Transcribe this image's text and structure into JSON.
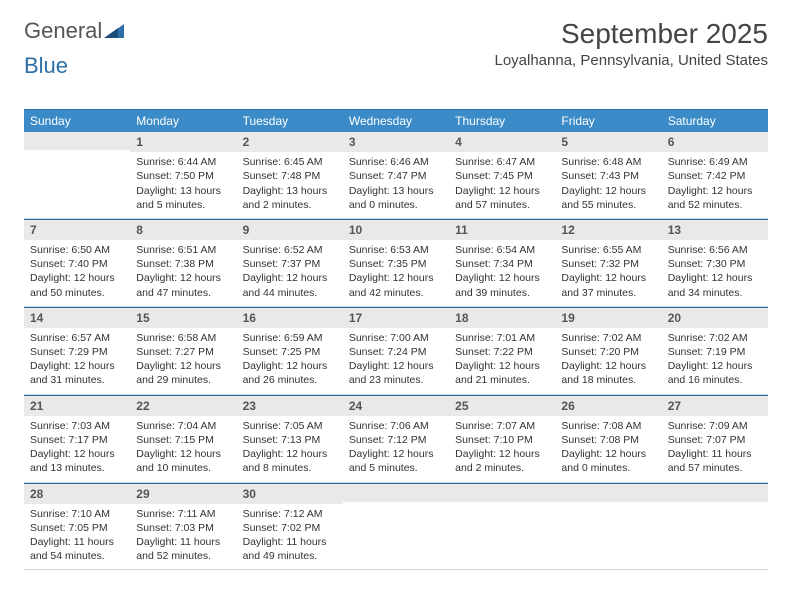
{
  "brand": {
    "part1": "General",
    "part2": "Blue"
  },
  "title": "September 2025",
  "location": "Loyalhanna, Pennsylvania, United States",
  "colors": {
    "header_bg": "#3b8bc9",
    "header_text": "#ffffff",
    "daynum_bg": "#e9e9e9",
    "border": "#2e6ca4",
    "text": "#333333"
  },
  "day_headers": [
    "Sunday",
    "Monday",
    "Tuesday",
    "Wednesday",
    "Thursday",
    "Friday",
    "Saturday"
  ],
  "weeks": [
    [
      null,
      {
        "num": "1",
        "sunrise": "Sunrise: 6:44 AM",
        "sunset": "Sunset: 7:50 PM",
        "daylight": "Daylight: 13 hours and 5 minutes."
      },
      {
        "num": "2",
        "sunrise": "Sunrise: 6:45 AM",
        "sunset": "Sunset: 7:48 PM",
        "daylight": "Daylight: 13 hours and 2 minutes."
      },
      {
        "num": "3",
        "sunrise": "Sunrise: 6:46 AM",
        "sunset": "Sunset: 7:47 PM",
        "daylight": "Daylight: 13 hours and 0 minutes."
      },
      {
        "num": "4",
        "sunrise": "Sunrise: 6:47 AM",
        "sunset": "Sunset: 7:45 PM",
        "daylight": "Daylight: 12 hours and 57 minutes."
      },
      {
        "num": "5",
        "sunrise": "Sunrise: 6:48 AM",
        "sunset": "Sunset: 7:43 PM",
        "daylight": "Daylight: 12 hours and 55 minutes."
      },
      {
        "num": "6",
        "sunrise": "Sunrise: 6:49 AM",
        "sunset": "Sunset: 7:42 PM",
        "daylight": "Daylight: 12 hours and 52 minutes."
      }
    ],
    [
      {
        "num": "7",
        "sunrise": "Sunrise: 6:50 AM",
        "sunset": "Sunset: 7:40 PM",
        "daylight": "Daylight: 12 hours and 50 minutes."
      },
      {
        "num": "8",
        "sunrise": "Sunrise: 6:51 AM",
        "sunset": "Sunset: 7:38 PM",
        "daylight": "Daylight: 12 hours and 47 minutes."
      },
      {
        "num": "9",
        "sunrise": "Sunrise: 6:52 AM",
        "sunset": "Sunset: 7:37 PM",
        "daylight": "Daylight: 12 hours and 44 minutes."
      },
      {
        "num": "10",
        "sunrise": "Sunrise: 6:53 AM",
        "sunset": "Sunset: 7:35 PM",
        "daylight": "Daylight: 12 hours and 42 minutes."
      },
      {
        "num": "11",
        "sunrise": "Sunrise: 6:54 AM",
        "sunset": "Sunset: 7:34 PM",
        "daylight": "Daylight: 12 hours and 39 minutes."
      },
      {
        "num": "12",
        "sunrise": "Sunrise: 6:55 AM",
        "sunset": "Sunset: 7:32 PM",
        "daylight": "Daylight: 12 hours and 37 minutes."
      },
      {
        "num": "13",
        "sunrise": "Sunrise: 6:56 AM",
        "sunset": "Sunset: 7:30 PM",
        "daylight": "Daylight: 12 hours and 34 minutes."
      }
    ],
    [
      {
        "num": "14",
        "sunrise": "Sunrise: 6:57 AM",
        "sunset": "Sunset: 7:29 PM",
        "daylight": "Daylight: 12 hours and 31 minutes."
      },
      {
        "num": "15",
        "sunrise": "Sunrise: 6:58 AM",
        "sunset": "Sunset: 7:27 PM",
        "daylight": "Daylight: 12 hours and 29 minutes."
      },
      {
        "num": "16",
        "sunrise": "Sunrise: 6:59 AM",
        "sunset": "Sunset: 7:25 PM",
        "daylight": "Daylight: 12 hours and 26 minutes."
      },
      {
        "num": "17",
        "sunrise": "Sunrise: 7:00 AM",
        "sunset": "Sunset: 7:24 PM",
        "daylight": "Daylight: 12 hours and 23 minutes."
      },
      {
        "num": "18",
        "sunrise": "Sunrise: 7:01 AM",
        "sunset": "Sunset: 7:22 PM",
        "daylight": "Daylight: 12 hours and 21 minutes."
      },
      {
        "num": "19",
        "sunrise": "Sunrise: 7:02 AM",
        "sunset": "Sunset: 7:20 PM",
        "daylight": "Daylight: 12 hours and 18 minutes."
      },
      {
        "num": "20",
        "sunrise": "Sunrise: 7:02 AM",
        "sunset": "Sunset: 7:19 PM",
        "daylight": "Daylight: 12 hours and 16 minutes."
      }
    ],
    [
      {
        "num": "21",
        "sunrise": "Sunrise: 7:03 AM",
        "sunset": "Sunset: 7:17 PM",
        "daylight": "Daylight: 12 hours and 13 minutes."
      },
      {
        "num": "22",
        "sunrise": "Sunrise: 7:04 AM",
        "sunset": "Sunset: 7:15 PM",
        "daylight": "Daylight: 12 hours and 10 minutes."
      },
      {
        "num": "23",
        "sunrise": "Sunrise: 7:05 AM",
        "sunset": "Sunset: 7:13 PM",
        "daylight": "Daylight: 12 hours and 8 minutes."
      },
      {
        "num": "24",
        "sunrise": "Sunrise: 7:06 AM",
        "sunset": "Sunset: 7:12 PM",
        "daylight": "Daylight: 12 hours and 5 minutes."
      },
      {
        "num": "25",
        "sunrise": "Sunrise: 7:07 AM",
        "sunset": "Sunset: 7:10 PM",
        "daylight": "Daylight: 12 hours and 2 minutes."
      },
      {
        "num": "26",
        "sunrise": "Sunrise: 7:08 AM",
        "sunset": "Sunset: 7:08 PM",
        "daylight": "Daylight: 12 hours and 0 minutes."
      },
      {
        "num": "27",
        "sunrise": "Sunrise: 7:09 AM",
        "sunset": "Sunset: 7:07 PM",
        "daylight": "Daylight: 11 hours and 57 minutes."
      }
    ],
    [
      {
        "num": "28",
        "sunrise": "Sunrise: 7:10 AM",
        "sunset": "Sunset: 7:05 PM",
        "daylight": "Daylight: 11 hours and 54 minutes."
      },
      {
        "num": "29",
        "sunrise": "Sunrise: 7:11 AM",
        "sunset": "Sunset: 7:03 PM",
        "daylight": "Daylight: 11 hours and 52 minutes."
      },
      {
        "num": "30",
        "sunrise": "Sunrise: 7:12 AM",
        "sunset": "Sunset: 7:02 PM",
        "daylight": "Daylight: 11 hours and 49 minutes."
      },
      null,
      null,
      null,
      null
    ]
  ]
}
